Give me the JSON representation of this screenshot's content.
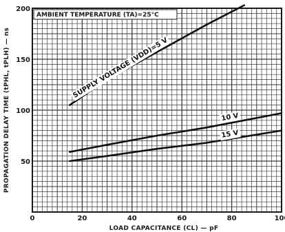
{
  "chart_data": {
    "type": "line",
    "title": "AMBIENT TEMPERATURE (TA)=25°C",
    "xlabel": "LOAD CAPACITANCE (CL) — pF",
    "ylabel": "PROPAGATION DELAY TIME (tPHL, tPLH) — ns",
    "xlim": [
      0,
      100
    ],
    "ylim": [
      0,
      200
    ],
    "x_ticks": [
      "0",
      "20",
      "40",
      "60",
      "80",
      "100"
    ],
    "y_ticks": [
      "50",
      "100",
      "150",
      "200"
    ],
    "grid": true,
    "series": [
      {
        "name": "SUPPLY VOLTAGE (VDD)=5 V",
        "x": [
          15,
          30,
          50,
          70,
          85
        ],
        "y": [
          105,
          130,
          157,
          184,
          203
        ]
      },
      {
        "name": "10 V",
        "x": [
          15,
          30,
          50,
          70,
          100
        ],
        "y": [
          59,
          66,
          75,
          83,
          97
        ]
      },
      {
        "name": "15 V",
        "x": [
          15,
          30,
          50,
          70,
          100
        ],
        "y": [
          50,
          55,
          62,
          68,
          80
        ]
      }
    ]
  },
  "labels": {
    "box_title": "AMBIENT TEMPERATURE (TA)=25°C",
    "y_axis": "PROPAGATION DELAY TIME (tPHL, tPLH) — ns",
    "x_axis": "LOAD CAPACITANCE (CL) — pF",
    "curve_5v": "SUPPLY VOLTAGE (VDD)=5 V",
    "curve_10v": "10 V",
    "curve_15v": "15 V"
  },
  "colors": {
    "ink": "#1a1a1a",
    "grid": "#3a3a3a",
    "paper": "#ffffff"
  }
}
